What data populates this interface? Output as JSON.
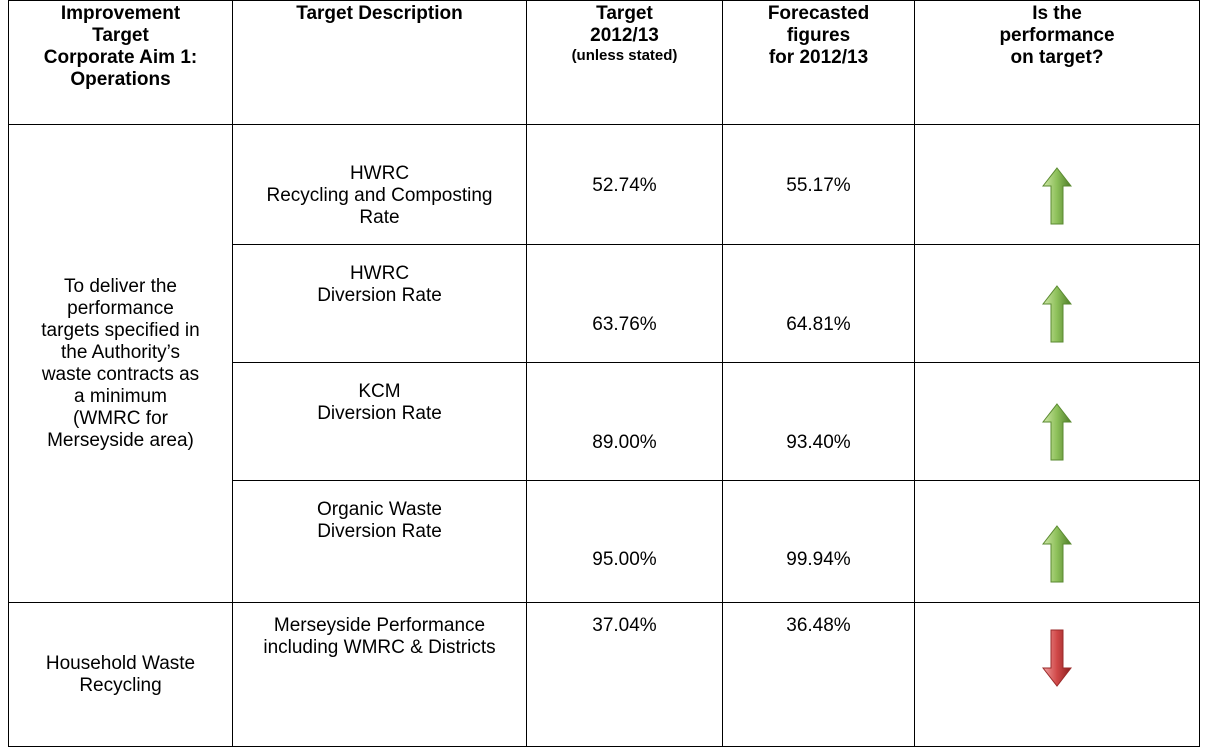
{
  "header": [
    [
      "Improvement",
      "Target",
      "Corporate Aim 1:",
      "Operations"
    ],
    [
      "Target Description"
    ],
    [
      "Target",
      "2012/13",
      "(unless stated)"
    ],
    [
      "Forecasted",
      "figures",
      "for 2012/13"
    ],
    [
      "Is the",
      "performance",
      "on target?"
    ]
  ],
  "groups": [
    {
      "aim": [
        "To deliver the",
        "performance",
        "targets specified in",
        "the Authority’s",
        "waste contracts as",
        "a minimum",
        "(WMRC for",
        "Merseyside area)"
      ],
      "rows": [
        {
          "description": [
            "HWRC",
            "Recycling and Composting",
            "Rate"
          ],
          "target": "52.74%",
          "forecast": "55.17%",
          "status": "up"
        },
        {
          "description": [
            "HWRC",
            "Diversion Rate"
          ],
          "target": "63.76%",
          "forecast": "64.81%",
          "status": "up"
        },
        {
          "description": [
            "KCM",
            "Diversion Rate"
          ],
          "target": "89.00%",
          "forecast": "93.40%",
          "status": "up"
        },
        {
          "description": [
            "Organic Waste",
            "Diversion Rate"
          ],
          "target": "95.00%",
          "forecast": "99.94%",
          "status": "up"
        }
      ]
    },
    {
      "aim": [
        "Household Waste",
        "Recycling"
      ],
      "rows": [
        {
          "description": [
            "Merseyside Performance",
            "including WMRC & Districts"
          ],
          "target": "37.04%",
          "forecast": "36.48%",
          "status": "down"
        }
      ]
    }
  ]
}
